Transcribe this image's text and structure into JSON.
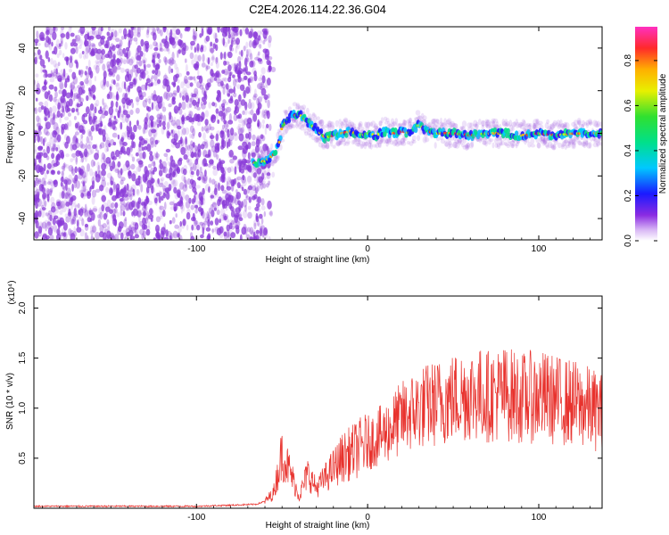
{
  "title": "C2E4.2026.114.22.36.G04",
  "colors": {
    "snr_line": "#e8322d",
    "spectrogram_noise": "#8a3ad8",
    "axes": "#000000"
  },
  "colorbar": {
    "label": "Normalized spectral amplitude",
    "range": [
      0.0,
      0.95
    ],
    "ticks": [
      "0.0",
      "0.2",
      "0.4",
      "0.6",
      "0.8"
    ],
    "tick_values": [
      0.0,
      0.2,
      0.4,
      0.6,
      0.8
    ],
    "colormap": "rainbow (white-violet-blue-cyan-green-yellow-orange-red-magenta)"
  },
  "chart_data": [
    {
      "type": "heatmap",
      "title": "C2E4.2026.114.22.36.G04",
      "xlabel": "Height of straight line (km)",
      "ylabel": "Frequency (Hz)",
      "xlim": [
        -195,
        137
      ],
      "ylim": [
        -50,
        50
      ],
      "xticks": [
        "-100",
        "0",
        "100"
      ],
      "xtick_values": [
        -100,
        0,
        100
      ],
      "yticks": [
        "-40",
        "-20",
        "0",
        "20",
        "40"
      ],
      "ytick_values": [
        -40,
        -20,
        0,
        20,
        40
      ],
      "noise_region_x": [
        -195,
        -57
      ],
      "signal_track": {
        "x": [
          -67,
          -60,
          -55,
          -52,
          -50,
          -45,
          -40,
          -35,
          -30,
          -25,
          -20,
          -15,
          -10,
          -5,
          0,
          5,
          10,
          15,
          20,
          25,
          30,
          35,
          40,
          50,
          60,
          70,
          80,
          90,
          100,
          110,
          120,
          130,
          137
        ],
        "y": [
          -14,
          -13,
          -10,
          -6,
          3,
          8,
          9,
          5,
          2,
          -2,
          -1,
          0,
          1,
          -1,
          0,
          -1,
          1,
          0,
          1,
          0,
          4,
          1,
          0,
          0,
          -1,
          0,
          0,
          -1,
          0,
          -1,
          0,
          0,
          0
        ]
      }
    },
    {
      "type": "line",
      "xlabel": "Height of straight line (km)",
      "ylabel": "SNR (10 * v/v)",
      "y_multiplier": "(x10⁴)",
      "xlim": [
        -195,
        137
      ],
      "ylim": [
        0,
        2.12
      ],
      "xticks": [
        "-100",
        "0",
        "100"
      ],
      "xtick_values": [
        -100,
        0,
        100
      ],
      "yticks": [
        "0.5",
        "1.0",
        "1.5",
        "2.0"
      ],
      "ytick_values": [
        0.5,
        1.0,
        1.5,
        2.0
      ],
      "series": [
        {
          "x": [
            -195,
            -140,
            -100,
            -80,
            -65,
            -60,
            -55,
            -50,
            -45,
            -40,
            -35,
            -30,
            -25,
            -20,
            -15,
            -10,
            -5,
            0,
            10,
            20,
            30,
            40,
            50,
            60,
            70,
            80,
            90,
            100,
            110,
            120,
            130,
            137
          ],
          "y": [
            0.02,
            0.02,
            0.02,
            0.03,
            0.04,
            0.07,
            0.15,
            0.55,
            0.35,
            0.12,
            0.35,
            0.2,
            0.3,
            0.4,
            0.5,
            0.55,
            0.6,
            0.65,
            0.75,
            0.9,
            1.0,
            1.05,
            1.1,
            1.15,
            1.12,
            1.15,
            1.1,
            1.12,
            1.08,
            1.05,
            1.0,
            0.95
          ]
        }
      ]
    }
  ]
}
